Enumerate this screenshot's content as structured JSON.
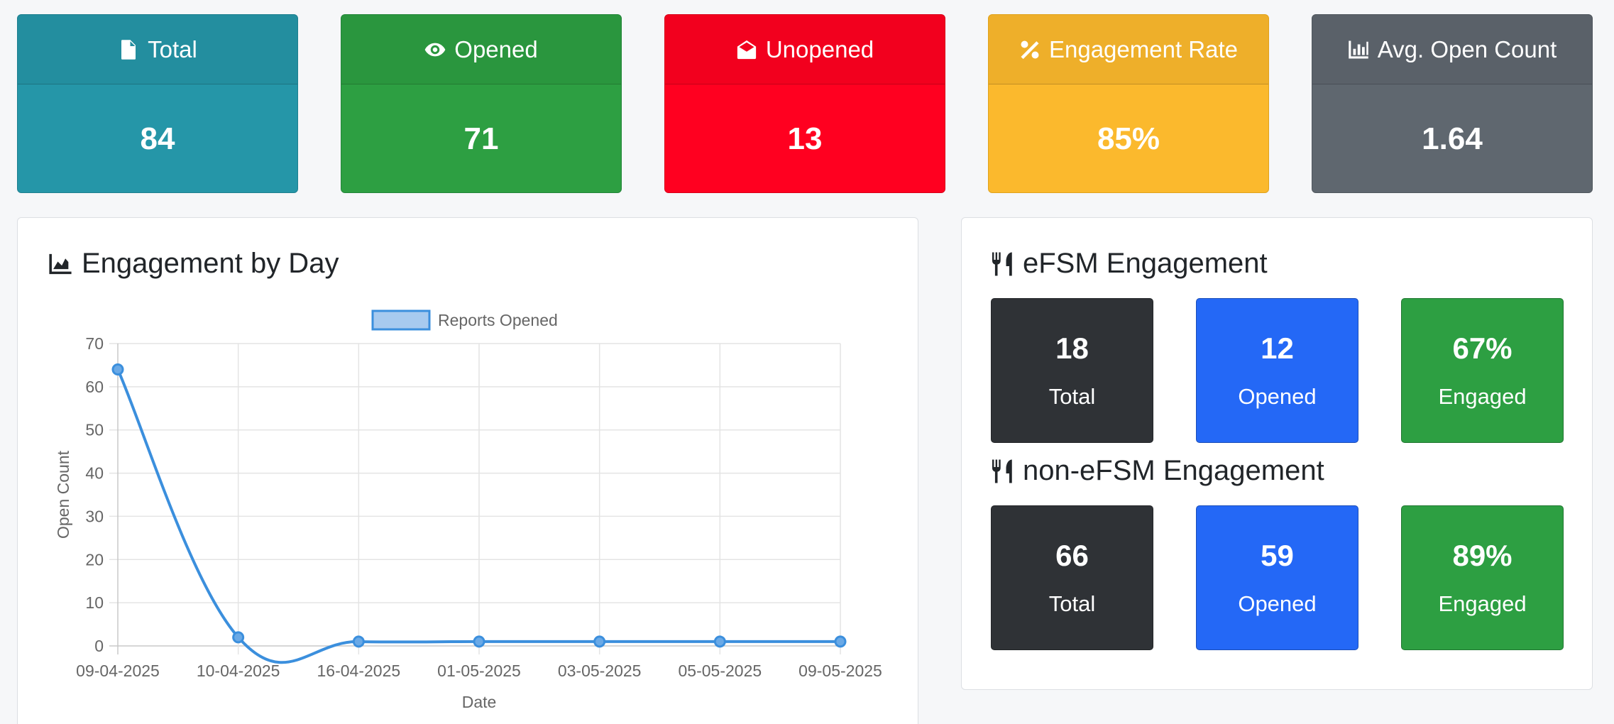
{
  "colors": {
    "total": "#2596a8",
    "opened": "#2d9f42",
    "unopened": "#ff0020",
    "engagement": "#fbb92d",
    "avg": "#5f676f",
    "dark": "#2f3236",
    "blue": "#2468f6",
    "green": "#2d9f42",
    "line": "#3b8fdd",
    "legend_fill": "#a7caef"
  },
  "stats": [
    {
      "key": "total",
      "icon": "file-icon",
      "label": "Total",
      "value": "84"
    },
    {
      "key": "opened",
      "icon": "eye-icon",
      "label": "Opened",
      "value": "71"
    },
    {
      "key": "unopened",
      "icon": "envelope-open-icon",
      "label": "Unopened",
      "value": "13"
    },
    {
      "key": "engagement",
      "icon": "percent-icon",
      "label": "Engagement Rate",
      "value": "85%"
    },
    {
      "key": "avg",
      "icon": "bar-chart-icon",
      "label": "Avg. Open Count",
      "value": "1.64"
    }
  ],
  "engagement_panel": {
    "title": "Engagement by Day",
    "icon": "area-chart-icon"
  },
  "chart_data": {
    "type": "line",
    "categories": [
      "09-04-2025",
      "10-04-2025",
      "16-04-2025",
      "01-05-2025",
      "03-05-2025",
      "05-05-2025",
      "09-05-2025"
    ],
    "series": [
      {
        "name": "Reports Opened",
        "values": [
          64,
          2,
          1,
          1,
          1,
          1,
          1
        ]
      }
    ],
    "xlabel": "Date",
    "ylabel": "Open Count",
    "ylim": [
      0,
      70
    ],
    "yticks": [
      0,
      10,
      20,
      30,
      40,
      50,
      60,
      70
    ],
    "grid": true,
    "legend": "top-center",
    "smooth": true
  },
  "efsm": {
    "title": "eFSM Engagement",
    "icon": "utensils-icon",
    "total": {
      "value": "18",
      "label": "Total"
    },
    "opened": {
      "value": "12",
      "label": "Opened"
    },
    "engaged": {
      "value": "67%",
      "label": "Engaged"
    }
  },
  "non_efsm": {
    "title": "non-eFSM Engagement",
    "icon": "utensils-icon",
    "total": {
      "value": "66",
      "label": "Total"
    },
    "opened": {
      "value": "59",
      "label": "Opened"
    },
    "engaged": {
      "value": "89%",
      "label": "Engaged"
    }
  }
}
